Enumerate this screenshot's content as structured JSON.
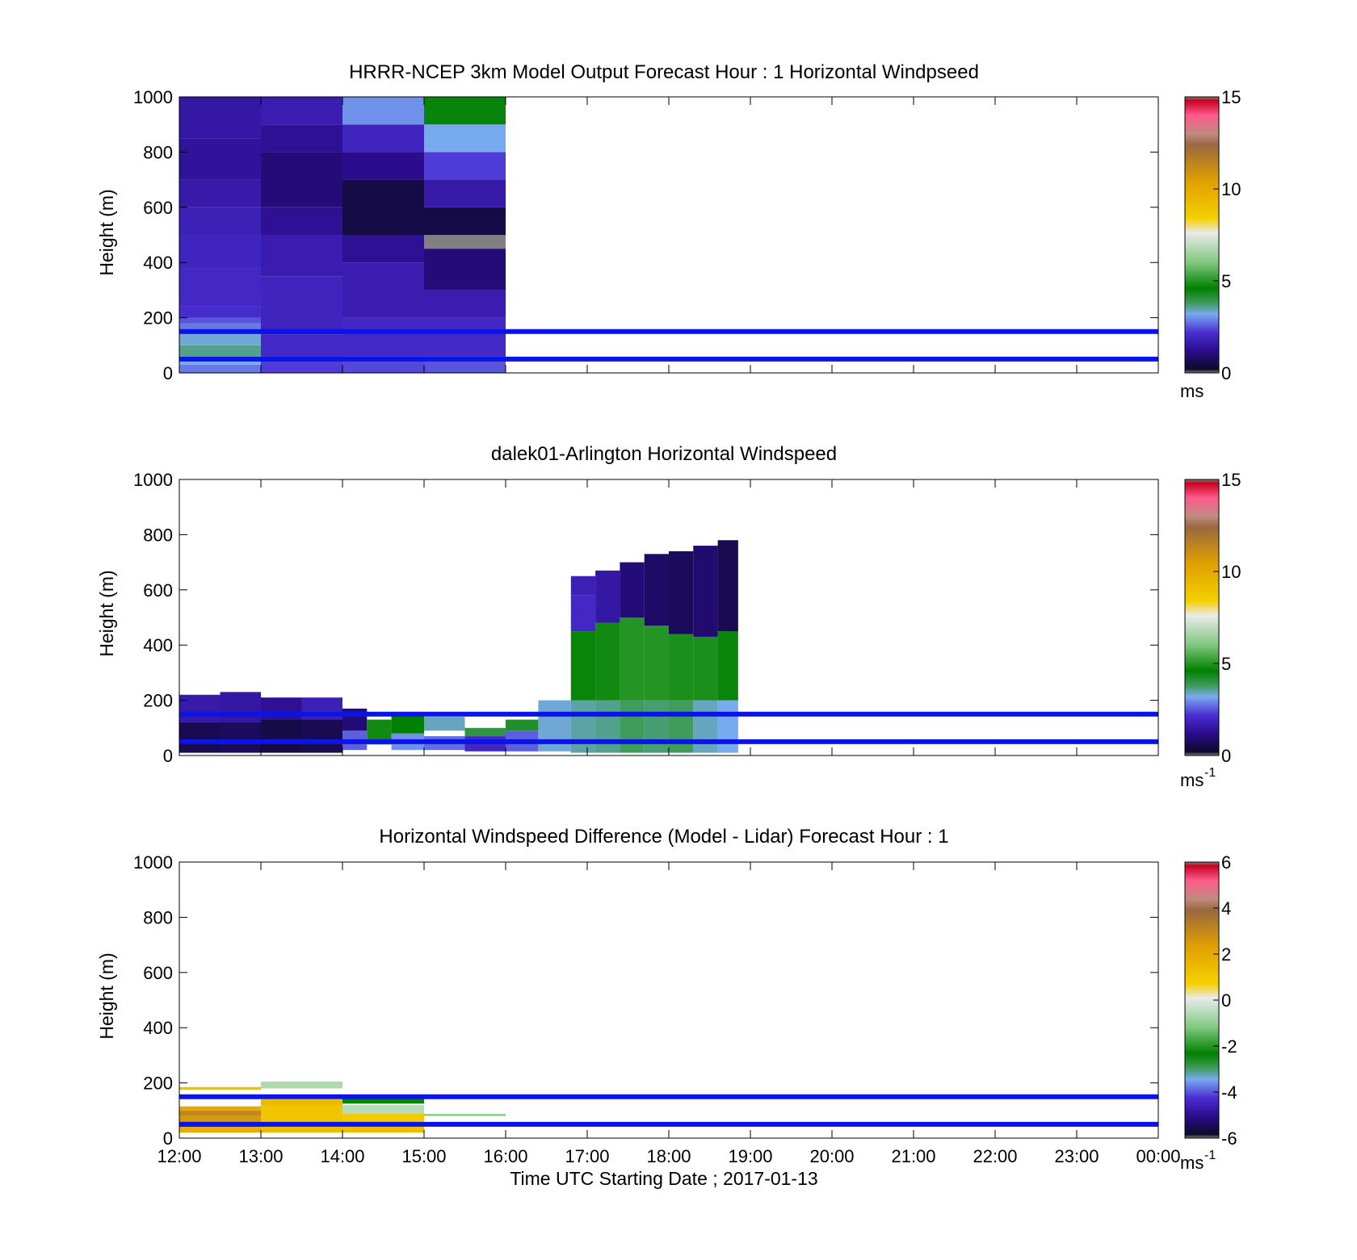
{
  "chart_data": [
    {
      "type": "heatmap",
      "title": "HRRR-NCEP 3km Model Output   Forecast Hour : 1 Horizontal Windpseed",
      "ylabel": "Height (m)",
      "xlabel": "",
      "xlim": [
        12,
        24
      ],
      "ylim": [
        0,
        1000
      ],
      "yticks": [
        "0",
        "200",
        "400",
        "600",
        "800",
        "1000"
      ],
      "reference_lines_m": [
        50,
        150
      ],
      "reference_line_color": "#0a14e6",
      "colorbar": {
        "range": [
          0,
          15
        ],
        "ticks": [
          "0",
          "5",
          "10",
          "15"
        ],
        "unit": "ms",
        "unit_exponent": "",
        "stops": [
          "#808080",
          "#0c0a2a",
          "#2a0c8c",
          "#4a2fd4",
          "#78aaf0",
          "#3f9c5a",
          "#008000",
          "#7fc87f",
          "#eaeaea",
          "#f5d000",
          "#e0a000",
          "#9a6840",
          "#c08a80",
          "#ff5a8c",
          "#c8001e",
          "#808080"
        ],
        "stop_values": [
          0.0,
          0.2,
          1.2,
          2.2,
          3.2,
          3.8,
          4.6,
          6.0,
          7.6,
          8.4,
          10.4,
          12.4,
          13.0,
          14.0,
          14.8,
          15.0
        ]
      },
      "cells": [
        {
          "t0": 12,
          "t1": 13,
          "h0": 0,
          "h1": 30,
          "v": 2.8
        },
        {
          "t0": 12,
          "t1": 13,
          "h0": 30,
          "h1": 60,
          "v": 3.2
        },
        {
          "t0": 12,
          "t1": 13,
          "h0": 60,
          "h1": 100,
          "v": 3.6
        },
        {
          "t0": 12,
          "t1": 13,
          "h0": 100,
          "h1": 140,
          "v": 3.3
        },
        {
          "t0": 12,
          "t1": 13,
          "h0": 140,
          "h1": 180,
          "v": 2.8
        },
        {
          "t0": 12,
          "t1": 13,
          "h0": 180,
          "h1": 200,
          "v": 2.5
        },
        {
          "t0": 12,
          "t1": 13,
          "h0": 200,
          "h1": 240,
          "v": 2.1
        },
        {
          "t0": 12,
          "t1": 13,
          "h0": 240,
          "h1": 380,
          "v": 2.0
        },
        {
          "t0": 12,
          "t1": 13,
          "h0": 380,
          "h1": 500,
          "v": 1.9
        },
        {
          "t0": 12,
          "t1": 13,
          "h0": 500,
          "h1": 600,
          "v": 1.8
        },
        {
          "t0": 12,
          "t1": 13,
          "h0": 600,
          "h1": 700,
          "v": 1.6
        },
        {
          "t0": 12,
          "t1": 13,
          "h0": 700,
          "h1": 850,
          "v": 1.4
        },
        {
          "t0": 12,
          "t1": 13,
          "h0": 850,
          "h1": 1000,
          "v": 1.5
        },
        {
          "t0": 13,
          "t1": 14,
          "h0": 0,
          "h1": 60,
          "v": 2.3
        },
        {
          "t0": 13,
          "t1": 14,
          "h0": 60,
          "h1": 140,
          "v": 2.0
        },
        {
          "t0": 13,
          "t1": 14,
          "h0": 140,
          "h1": 350,
          "v": 1.9
        },
        {
          "t0": 13,
          "t1": 14,
          "h0": 350,
          "h1": 500,
          "v": 1.7
        },
        {
          "t0": 13,
          "t1": 14,
          "h0": 500,
          "h1": 600,
          "v": 1.3
        },
        {
          "t0": 13,
          "t1": 14,
          "h0": 600,
          "h1": 800,
          "v": 1.0
        },
        {
          "t0": 13,
          "t1": 14,
          "h0": 800,
          "h1": 900,
          "v": 1.3
        },
        {
          "t0": 13,
          "t1": 14,
          "h0": 900,
          "h1": 1000,
          "v": 1.7
        },
        {
          "t0": 14,
          "t1": 15,
          "h0": 0,
          "h1": 60,
          "v": 2.4
        },
        {
          "t0": 14,
          "t1": 15,
          "h0": 60,
          "h1": 200,
          "v": 2.0
        },
        {
          "t0": 14,
          "t1": 15,
          "h0": 200,
          "h1": 400,
          "v": 1.7
        },
        {
          "t0": 14,
          "t1": 15,
          "h0": 400,
          "h1": 500,
          "v": 1.3
        },
        {
          "t0": 14,
          "t1": 15,
          "h0": 500,
          "h1": 700,
          "v": 0.5
        },
        {
          "t0": 14,
          "t1": 15,
          "h0": 700,
          "h1": 800,
          "v": 1.2
        },
        {
          "t0": 14,
          "t1": 15,
          "h0": 800,
          "h1": 900,
          "v": 1.9
        },
        {
          "t0": 14,
          "t1": 15,
          "h0": 900,
          "h1": 1000,
          "v": 3.0
        },
        {
          "t0": 15,
          "t1": 16,
          "h0": 0,
          "h1": 60,
          "v": 2.5
        },
        {
          "t0": 15,
          "t1": 16,
          "h0": 60,
          "h1": 200,
          "v": 2.0
        },
        {
          "t0": 15,
          "t1": 16,
          "h0": 200,
          "h1": 300,
          "v": 1.7
        },
        {
          "t0": 15,
          "t1": 16,
          "h0": 300,
          "h1": 450,
          "v": 1.0
        },
        {
          "t0": 15,
          "t1": 16,
          "h0": 450,
          "h1": 500,
          "v": 0.0
        },
        {
          "t0": 15,
          "t1": 16,
          "h0": 500,
          "h1": 600,
          "v": 0.5
        },
        {
          "t0": 15,
          "t1": 16,
          "h0": 600,
          "h1": 700,
          "v": 1.6
        },
        {
          "t0": 15,
          "t1": 16,
          "h0": 700,
          "h1": 800,
          "v": 2.3
        },
        {
          "t0": 15,
          "t1": 16,
          "h0": 800,
          "h1": 900,
          "v": 3.2
        },
        {
          "t0": 15,
          "t1": 16,
          "h0": 900,
          "h1": 1000,
          "v": 4.5
        }
      ]
    },
    {
      "type": "heatmap",
      "title": "dalek01-Arlington  Horizontal Windspeed",
      "ylabel": "Height (m)",
      "xlabel": "",
      "xlim": [
        12,
        24
      ],
      "ylim": [
        0,
        1000
      ],
      "yticks": [
        "0",
        "200",
        "400",
        "600",
        "800",
        "1000"
      ],
      "reference_lines_m": [
        50,
        150
      ],
      "reference_line_color": "#0a14e6",
      "colorbar": {
        "range": [
          0,
          15
        ],
        "ticks": [
          "0",
          "5",
          "10",
          "15"
        ],
        "unit": "ms",
        "unit_exponent": "-1",
        "stops": [
          "#808080",
          "#0c0a2a",
          "#2a0c8c",
          "#4a2fd4",
          "#78aaf0",
          "#3f9c5a",
          "#008000",
          "#7fc87f",
          "#eaeaea",
          "#f5d000",
          "#e0a000",
          "#9a6840",
          "#c08a80",
          "#ff5a8c",
          "#c8001e",
          "#808080"
        ],
        "stop_values": [
          0.0,
          0.2,
          1.2,
          2.2,
          3.2,
          3.8,
          4.6,
          6.0,
          7.6,
          8.4,
          10.4,
          12.4,
          13.0,
          14.0,
          14.8,
          15.0
        ]
      },
      "cells": [
        {
          "t0": 12,
          "t1": 12.5,
          "h0": 10,
          "h1": 120,
          "v": 0.6
        },
        {
          "t0": 12,
          "t1": 12.5,
          "h0": 120,
          "h1": 220,
          "v": 1.6
        },
        {
          "t0": 12.5,
          "t1": 13,
          "h0": 10,
          "h1": 120,
          "v": 0.7
        },
        {
          "t0": 12.5,
          "t1": 13,
          "h0": 120,
          "h1": 230,
          "v": 1.5
        },
        {
          "t0": 13,
          "t1": 13.5,
          "h0": 10,
          "h1": 130,
          "v": 0.5
        },
        {
          "t0": 13,
          "t1": 13.5,
          "h0": 130,
          "h1": 210,
          "v": 1.3
        },
        {
          "t0": 13.5,
          "t1": 14,
          "h0": 10,
          "h1": 130,
          "v": 0.6
        },
        {
          "t0": 13.5,
          "t1": 14,
          "h0": 130,
          "h1": 210,
          "v": 1.8
        },
        {
          "t0": 14,
          "t1": 14.3,
          "h0": 20,
          "h1": 90,
          "v": 2.6
        },
        {
          "t0": 14,
          "t1": 14.3,
          "h0": 90,
          "h1": 170,
          "v": 1.0
        },
        {
          "t0": 14.3,
          "t1": 14.6,
          "h0": 40,
          "h1": 130,
          "v": 4.8
        },
        {
          "t0": 14.6,
          "t1": 15,
          "h0": 20,
          "h1": 80,
          "v": 3.0
        },
        {
          "t0": 14.6,
          "t1": 15,
          "h0": 80,
          "h1": 150,
          "v": 4.6
        },
        {
          "t0": 15,
          "t1": 15.5,
          "h0": 20,
          "h1": 70,
          "v": 2.7
        },
        {
          "t0": 15,
          "t1": 15.5,
          "h0": 90,
          "h1": 140,
          "v": 3.4
        },
        {
          "t0": 15.5,
          "t1": 16,
          "h0": 15,
          "h1": 70,
          "v": 2.0
        },
        {
          "t0": 15.5,
          "t1": 16,
          "h0": 70,
          "h1": 100,
          "v": 4.0
        },
        {
          "t0": 16,
          "t1": 16.4,
          "h0": 15,
          "h1": 90,
          "v": 2.6
        },
        {
          "t0": 16,
          "t1": 16.4,
          "h0": 90,
          "h1": 130,
          "v": 4.2
        },
        {
          "t0": 16.4,
          "t1": 16.8,
          "h0": 15,
          "h1": 200,
          "v": 3.3
        },
        {
          "t0": 16.8,
          "t1": 17.1,
          "h0": 10,
          "h1": 200,
          "v": 3.5
        },
        {
          "t0": 16.8,
          "t1": 17.1,
          "h0": 200,
          "h1": 450,
          "v": 4.7
        },
        {
          "t0": 16.8,
          "t1": 17.1,
          "h0": 450,
          "h1": 580,
          "v": 2.0
        },
        {
          "t0": 16.8,
          "t1": 17.1,
          "h0": 580,
          "h1": 650,
          "v": 1.8
        },
        {
          "t0": 17.1,
          "t1": 17.4,
          "h0": 10,
          "h1": 200,
          "v": 3.6
        },
        {
          "t0": 17.1,
          "t1": 17.4,
          "h0": 200,
          "h1": 480,
          "v": 4.8
        },
        {
          "t0": 17.1,
          "t1": 17.4,
          "h0": 480,
          "h1": 670,
          "v": 1.5
        },
        {
          "t0": 17.4,
          "t1": 17.7,
          "h0": 10,
          "h1": 200,
          "v": 3.8
        },
        {
          "t0": 17.4,
          "t1": 17.7,
          "h0": 200,
          "h1": 500,
          "v": 5.0
        },
        {
          "t0": 17.4,
          "t1": 17.7,
          "h0": 500,
          "h1": 700,
          "v": 1.0
        },
        {
          "t0": 17.7,
          "t1": 18,
          "h0": 10,
          "h1": 200,
          "v": 3.7
        },
        {
          "t0": 17.7,
          "t1": 18,
          "h0": 200,
          "h1": 470,
          "v": 5.0
        },
        {
          "t0": 17.7,
          "t1": 18,
          "h0": 470,
          "h1": 730,
          "v": 0.8
        },
        {
          "t0": 18,
          "t1": 18.3,
          "h0": 10,
          "h1": 200,
          "v": 3.8
        },
        {
          "t0": 18,
          "t1": 18.3,
          "h0": 200,
          "h1": 440,
          "v": 4.9
        },
        {
          "t0": 18,
          "t1": 18.3,
          "h0": 440,
          "h1": 740,
          "v": 0.7
        },
        {
          "t0": 18.3,
          "t1": 18.6,
          "h0": 10,
          "h1": 200,
          "v": 3.4
        },
        {
          "t0": 18.3,
          "t1": 18.6,
          "h0": 200,
          "h1": 430,
          "v": 4.9
        },
        {
          "t0": 18.3,
          "t1": 18.6,
          "h0": 430,
          "h1": 760,
          "v": 0.9
        },
        {
          "t0": 18.6,
          "t1": 18.85,
          "h0": 10,
          "h1": 200,
          "v": 3.2
        },
        {
          "t0": 18.6,
          "t1": 18.85,
          "h0": 200,
          "h1": 450,
          "v": 4.7
        },
        {
          "t0": 18.6,
          "t1": 18.85,
          "h0": 450,
          "h1": 780,
          "v": 0.6
        }
      ]
    },
    {
      "type": "heatmap",
      "title": "Horizontal Windspeed Difference (Model - Lidar) Forecast Hour : 1",
      "ylabel": "Height (m)",
      "xlabel": "Time UTC  Starting Date ; 2017-01-13",
      "xlim": [
        12,
        24
      ],
      "ylim": [
        0,
        1000
      ],
      "xticks": [
        "12:00",
        "13:00",
        "14:00",
        "15:00",
        "16:00",
        "17:00",
        "18:00",
        "19:00",
        "20:00",
        "21:00",
        "22:00",
        "23:00",
        "00:00"
      ],
      "yticks": [
        "0",
        "200",
        "400",
        "600",
        "800",
        "1000"
      ],
      "reference_lines_m": [
        50,
        150
      ],
      "reference_line_color": "#0a14e6",
      "colorbar": {
        "range": [
          -6,
          6
        ],
        "ticks": [
          "-6",
          "-4",
          "-2",
          "0",
          "2",
          "4",
          "6"
        ],
        "unit": "ms",
        "unit_exponent": "-1",
        "stops": [
          "#808080",
          "#0c0a2a",
          "#2a0c8c",
          "#4a2fd4",
          "#78aaf0",
          "#3f9c5a",
          "#008000",
          "#7fc87f",
          "#eaeaea",
          "#f5d000",
          "#e0a000",
          "#9a6840",
          "#c08a80",
          "#ff5a8c",
          "#c8001e",
          "#808080"
        ],
        "stop_values": [
          -6.0,
          -5.84,
          -5.04,
          -4.24,
          -3.44,
          -2.96,
          -2.32,
          -1.2,
          0.08,
          0.72,
          2.32,
          3.92,
          4.4,
          5.2,
          5.84,
          6.0
        ]
      },
      "cells": [
        {
          "t0": 12,
          "t1": 13,
          "h0": 20,
          "h1": 40,
          "v": 1.8
        },
        {
          "t0": 12,
          "t1": 13,
          "h0": 40,
          "h1": 60,
          "v": 3.2
        },
        {
          "t0": 12,
          "t1": 13,
          "h0": 60,
          "h1": 80,
          "v": 2.5
        },
        {
          "t0": 12,
          "t1": 13,
          "h0": 80,
          "h1": 100,
          "v": 3.0
        },
        {
          "t0": 12,
          "t1": 13,
          "h0": 100,
          "h1": 115,
          "v": 2.0
        },
        {
          "t0": 12,
          "t1": 13,
          "h0": 175,
          "h1": 185,
          "v": 1.2
        },
        {
          "t0": 13,
          "t1": 14,
          "h0": 20,
          "h1": 60,
          "v": 1.4
        },
        {
          "t0": 13,
          "t1": 14,
          "h0": 60,
          "h1": 120,
          "v": 1.1
        },
        {
          "t0": 13,
          "t1": 14,
          "h0": 120,
          "h1": 140,
          "v": 1.5
        },
        {
          "t0": 13,
          "t1": 14,
          "h0": 180,
          "h1": 205,
          "v": -0.6
        },
        {
          "t0": 14,
          "t1": 15,
          "h0": 20,
          "h1": 60,
          "v": 1.3
        },
        {
          "t0": 14,
          "t1": 15,
          "h0": 60,
          "h1": 90,
          "v": 0.9
        },
        {
          "t0": 14,
          "t1": 15,
          "h0": 90,
          "h1": 120,
          "v": -0.5
        },
        {
          "t0": 14,
          "t1": 15,
          "h0": 125,
          "h1": 150,
          "v": -2.4
        },
        {
          "t0": 15,
          "t1": 16,
          "h0": 80,
          "h1": 88,
          "v": -1.0
        }
      ]
    }
  ]
}
